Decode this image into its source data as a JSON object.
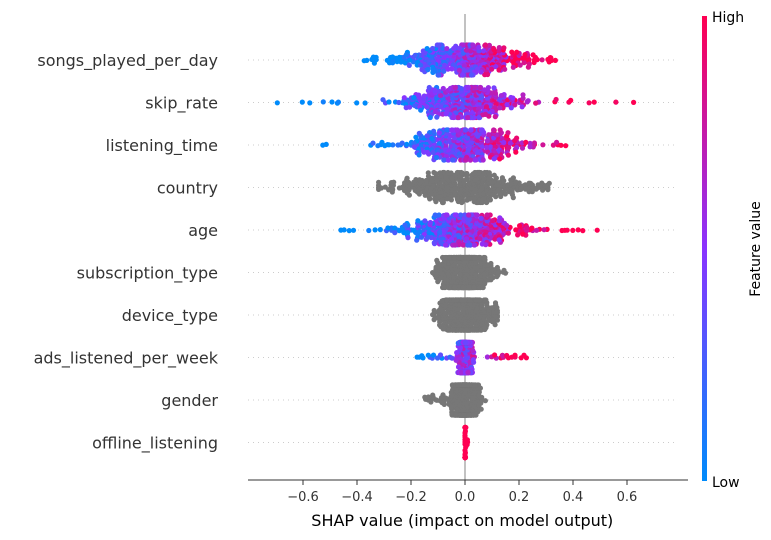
{
  "chart_data": {
    "type": "scatter",
    "subtype": "shap-beeswarm",
    "title": "",
    "xlabel": "SHAP value (impact on model output)",
    "ylabel": "",
    "xlim": [
      -0.8,
      0.78
    ],
    "xticks": [
      -0.6,
      -0.4,
      -0.2,
      0.0,
      0.2,
      0.4,
      0.6
    ],
    "xtick_labels": [
      "−0.6",
      "−0.4",
      "−0.2",
      "0.0",
      "0.2",
      "0.4",
      "0.6"
    ],
    "grid": false,
    "colorbar": {
      "label": "Feature value",
      "high_label": "High",
      "low_label": "Low",
      "high_color": "#ff0052",
      "mid_color": "#8a33ff",
      "low_color": "#008bfb"
    },
    "categorical_color": "#777777",
    "features": [
      {
        "name": "songs_played_per_day",
        "colored": true,
        "range": [
          -0.42,
          0.34
        ],
        "spread": 0.12,
        "trend": 1
      },
      {
        "name": "skip_rate",
        "colored": true,
        "range": [
          -0.72,
          0.68
        ],
        "spread": 0.1,
        "trend": 1
      },
      {
        "name": "listening_time",
        "colored": true,
        "range": [
          -0.55,
          0.4
        ],
        "spread": 0.11,
        "trend": 1
      },
      {
        "name": "country",
        "colored": false,
        "range": [
          -0.32,
          0.32
        ],
        "spread": 0.13,
        "trend": 0
      },
      {
        "name": "age",
        "colored": true,
        "range": [
          -0.47,
          0.52
        ],
        "spread": 0.1,
        "trend": 1
      },
      {
        "name": "subscription_type",
        "colored": false,
        "range": [
          -0.12,
          0.15
        ],
        "spread": 0.05,
        "trend": 0
      },
      {
        "name": "device_type",
        "colored": false,
        "range": [
          -0.12,
          0.12
        ],
        "spread": 0.05,
        "trend": 0
      },
      {
        "name": "ads_listened_per_week",
        "colored": true,
        "range": [
          -0.18,
          0.24
        ],
        "spread": 0.012,
        "trend": 1
      },
      {
        "name": "gender",
        "colored": false,
        "range": [
          -0.15,
          0.08
        ],
        "spread": 0.025,
        "trend": 0
      },
      {
        "name": "offline_listening",
        "colored": true,
        "range": [
          0.0,
          0.01
        ],
        "spread": 0.001,
        "trend": 1
      }
    ]
  }
}
